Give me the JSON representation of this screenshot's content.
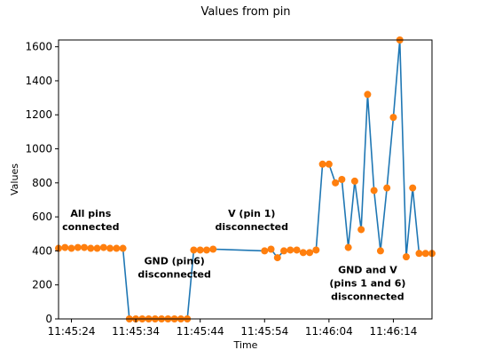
{
  "chart_data": {
    "type": "line",
    "title": "Values from pin",
    "xlabel": "Time",
    "ylabel": "Values",
    "x_ticks": [
      "11:45:24",
      "11:45:34",
      "11:45:44",
      "11:45:54",
      "11:46:04",
      "11:46:14"
    ],
    "y_ticks": [
      "0",
      "200",
      "400",
      "600",
      "800",
      "1000",
      "1200",
      "1400",
      "1600"
    ],
    "xlim": [
      "11:45:22",
      "11:46:20"
    ],
    "ylim": [
      0,
      1640
    ],
    "grid": false,
    "line_color": "#1f77b4",
    "marker_color": "#ff7f0e",
    "series": [
      {
        "line": true,
        "markers": true,
        "x": [
          "11:45:22",
          "11:45:23",
          "11:45:24",
          "11:45:25",
          "11:45:26",
          "11:45:27",
          "11:45:28",
          "11:45:29",
          "11:45:30",
          "11:45:31",
          "11:45:32",
          "11:45:33",
          "11:45:34",
          "11:45:35",
          "11:45:36",
          "11:45:37",
          "11:45:38",
          "11:45:39",
          "11:45:40",
          "11:45:41",
          "11:45:42",
          "11:45:43",
          "11:45:44",
          "11:45:45",
          "11:45:46"
        ],
        "y": [
          415,
          420,
          415,
          420,
          420,
          415,
          415,
          420,
          415,
          415,
          415,
          0,
          0,
          0,
          0,
          0,
          0,
          0,
          0,
          0,
          0,
          405,
          405,
          405,
          410
        ]
      },
      {
        "line": true,
        "markers": false,
        "x": [
          "11:45:46",
          "11:45:54"
        ],
        "y": [
          410,
          400
        ]
      },
      {
        "line": true,
        "markers": true,
        "x": [
          "11:45:54",
          "11:45:55",
          "11:45:56",
          "11:45:57",
          "11:45:58",
          "11:45:59",
          "11:46:00",
          "11:46:01",
          "11:46:02",
          "11:46:03",
          "11:46:04",
          "11:46:05",
          "11:46:06",
          "11:46:07",
          "11:46:08",
          "11:46:09",
          "11:46:10",
          "11:46:11",
          "11:46:12",
          "11:46:13",
          "11:46:14",
          "11:46:15",
          "11:46:16",
          "11:46:17",
          "11:46:18",
          "11:46:19",
          "11:46:20"
        ],
        "y": [
          400,
          410,
          360,
          400,
          405,
          405,
          390,
          390,
          405,
          910,
          910,
          800,
          820,
          420,
          810,
          525,
          1320,
          755,
          400,
          770,
          1185,
          1640,
          365,
          770,
          385,
          385,
          385
        ]
      }
    ],
    "annotations": [
      {
        "lines": [
          "All pins",
          "connected"
        ],
        "x": "11:45:27",
        "y": 600
      },
      {
        "lines": [
          "GND (pin6)",
          "disconnected"
        ],
        "x": "11:45:40",
        "y": 320
      },
      {
        "lines": [
          "V (pin 1)",
          "disconnected"
        ],
        "x": "11:45:52",
        "y": 600
      },
      {
        "lines": [
          "GND and V",
          "(pins 1 and 6)",
          "disconnected"
        ],
        "x": "11:46:10",
        "y": 270
      }
    ]
  }
}
